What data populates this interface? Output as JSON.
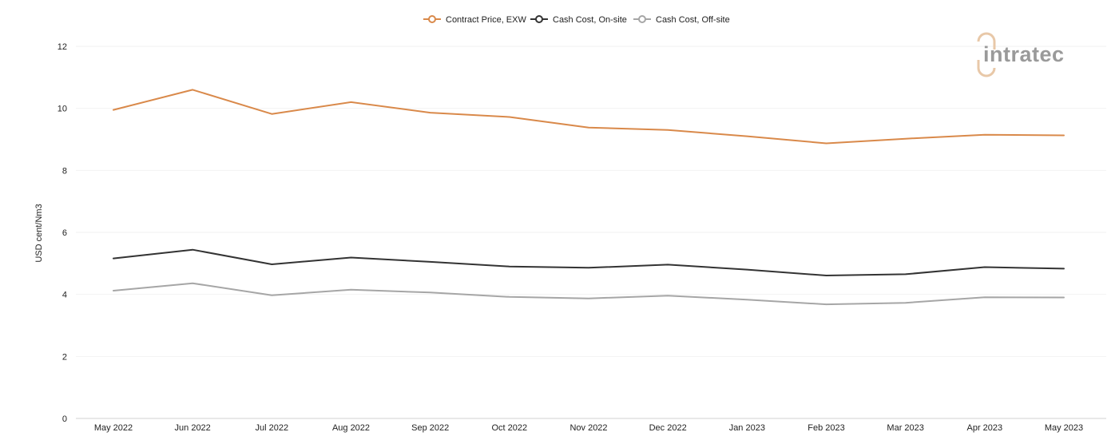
{
  "chart_data": {
    "type": "line",
    "categories": [
      "May 2022",
      "Jun 2022",
      "Jul 2022",
      "Aug 2022",
      "Sep 2022",
      "Oct 2022",
      "Nov 2022",
      "Dec 2022",
      "Jan 2023",
      "Feb 2023",
      "Mar 2023",
      "Apr 2023",
      "May 2023"
    ],
    "series": [
      {
        "name": "Contract Price, EXW",
        "color": "#d9894a",
        "values": [
          9.95,
          10.6,
          9.82,
          10.2,
          9.86,
          9.72,
          9.38,
          9.3,
          9.1,
          8.87,
          9.02,
          9.15,
          9.13
        ]
      },
      {
        "name": "Cash Cost, On-site",
        "color": "#333333",
        "values": [
          5.16,
          5.44,
          4.97,
          5.19,
          5.05,
          4.9,
          4.86,
          4.96,
          4.8,
          4.61,
          4.65,
          4.88,
          4.83
        ]
      },
      {
        "name": "Cash Cost, Off-site",
        "color": "#a6a6a6",
        "values": [
          4.12,
          4.36,
          3.97,
          4.15,
          4.06,
          3.92,
          3.87,
          3.96,
          3.83,
          3.68,
          3.73,
          3.91,
          3.9
        ]
      }
    ],
    "xlabel": "",
    "ylabel": "USD cent/Nm3",
    "ylim": [
      0,
      12
    ],
    "yticks": [
      0,
      2,
      4,
      6,
      8,
      10,
      12
    ],
    "grid": true,
    "legend_position": "top-center"
  },
  "logo": {
    "text": "intratec",
    "color_primary": "#9a9a9a",
    "color_accent": "#e8c8a8"
  }
}
